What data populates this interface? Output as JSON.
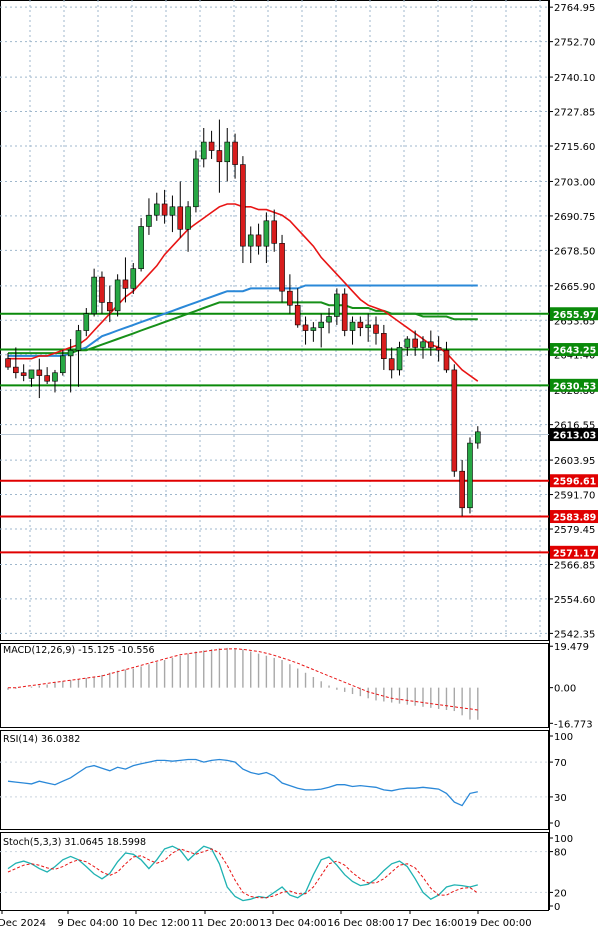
{
  "colors": {
    "bull": "#27a844",
    "bear": "#d81d1d",
    "ma_red": "#e81414",
    "ma_blue": "#2a88d8",
    "ma_green": "#179019",
    "macd_hist": "#a8a8a8",
    "macd_signal": "#e81414",
    "rsi": "#2a88d8",
    "stoch_main": "#1fb2b2",
    "stoch_signal": "#e81414",
    "grid": "#9fb7cc",
    "support_green": "#0a8a0a",
    "resistance_red": "#e00000"
  },
  "chart_data": [
    {
      "type": "candlestick",
      "panel": "price",
      "ylim": [
        2540.0,
        2767.5
      ],
      "y_ticks": [
        "2764.95",
        "2752.70",
        "2740.10",
        "2727.85",
        "2715.60",
        "2703.00",
        "2690.75",
        "2678.50",
        "2665.90",
        "2653.65",
        "2641.40",
        "2628.80",
        "2616.55",
        "2603.95",
        "2591.70",
        "2579.45",
        "2566.85",
        "2554.60",
        "2542.35"
      ],
      "x_tick_labels": [
        "Dec 2024",
        "9 Dec 04:00",
        "10 Dec 12:00",
        "11 Dec 20:00",
        "13 Dec 04:00",
        "16 Dec 08:00",
        "17 Dec 16:00",
        "19 Dec 00:00"
      ],
      "current_price": "2613.03",
      "levels": [
        {
          "label": "2655.97",
          "value": 2655.97,
          "color": "green"
        },
        {
          "label": "2643.25",
          "value": 2643.25,
          "color": "green"
        },
        {
          "label": "2630.53",
          "value": 2630.53,
          "color": "green"
        },
        {
          "label": "2596.61",
          "value": 2596.61,
          "color": "red"
        },
        {
          "label": "2583.89",
          "value": 2583.89,
          "color": "red"
        },
        {
          "label": "2571.17",
          "value": 2571.17,
          "color": "red"
        }
      ],
      "candles": [
        [
          2640,
          2642,
          2636,
          2637
        ],
        [
          2637,
          2644,
          2633,
          2635
        ],
        [
          2635,
          2638,
          2632,
          2634
        ],
        [
          2633,
          2636,
          2630,
          2636
        ],
        [
          2636,
          2640,
          2626,
          2634
        ],
        [
          2634,
          2637,
          2631,
          2632
        ],
        [
          2632,
          2636,
          2628,
          2635
        ],
        [
          2635,
          2643,
          2634,
          2641
        ],
        [
          2641,
          2647,
          2628,
          2643
        ],
        [
          2643,
          2652,
          2630,
          2650
        ],
        [
          2650,
          2658,
          2648,
          2656
        ],
        [
          2656,
          2672,
          2655,
          2669
        ],
        [
          2669,
          2671,
          2656,
          2660
        ],
        [
          2660,
          2666,
          2653,
          2657
        ],
        [
          2657,
          2670,
          2655,
          2668
        ],
        [
          2668,
          2676,
          2660,
          2665
        ],
        [
          2665,
          2674,
          2663,
          2672
        ],
        [
          2672,
          2690,
          2671,
          2687
        ],
        [
          2687,
          2697,
          2684,
          2691
        ],
        [
          2691,
          2699,
          2689,
          2695
        ],
        [
          2695,
          2700,
          2688,
          2691
        ],
        [
          2691,
          2698,
          2685,
          2694
        ],
        [
          2694,
          2703,
          2683,
          2686
        ],
        [
          2686,
          2696,
          2678,
          2694
        ],
        [
          2694,
          2714,
          2692,
          2711
        ],
        [
          2711,
          2722,
          2708,
          2717
        ],
        [
          2717,
          2721,
          2711,
          2714
        ],
        [
          2714,
          2725,
          2699,
          2710
        ],
        [
          2710,
          2722,
          2703,
          2717
        ],
        [
          2717,
          2720,
          2704,
          2709
        ],
        [
          2709,
          2712,
          2674,
          2680
        ],
        [
          2680,
          2687,
          2674,
          2684
        ],
        [
          2684,
          2688,
          2677,
          2680
        ],
        [
          2680,
          2692,
          2674,
          2689
        ],
        [
          2689,
          2693,
          2678,
          2681
        ],
        [
          2681,
          2684,
          2660,
          2664
        ],
        [
          2664,
          2670,
          2656,
          2659
        ],
        [
          2659,
          2665,
          2651,
          2652
        ],
        [
          2652,
          2655,
          2645,
          2650
        ],
        [
          2650,
          2653,
          2646,
          2651
        ],
        [
          2651,
          2656,
          2644,
          2653
        ],
        [
          2653,
          2658,
          2649,
          2655
        ],
        [
          2655,
          2665,
          2652,
          2663
        ],
        [
          2663,
          2665,
          2648,
          2650
        ],
        [
          2650,
          2655,
          2645,
          2653
        ],
        [
          2653,
          2655,
          2648,
          2651
        ],
        [
          2651,
          2656,
          2646,
          2652
        ],
        [
          2652,
          2655,
          2645,
          2649
        ],
        [
          2649,
          2652,
          2636,
          2640
        ],
        [
          2640,
          2644,
          2633,
          2636
        ],
        [
          2636,
          2646,
          2634,
          2644
        ],
        [
          2644,
          2648,
          2641,
          2647
        ],
        [
          2647,
          2650,
          2641,
          2644
        ],
        [
          2644,
          2648,
          2640,
          2646
        ],
        [
          2646,
          2650,
          2641,
          2644
        ],
        [
          2644,
          2648,
          2639,
          2643
        ],
        [
          2643,
          2646,
          2635,
          2636
        ],
        [
          2636,
          2638,
          2598,
          2600
        ],
        [
          2600,
          2604,
          2584,
          2587
        ],
        [
          2587,
          2612,
          2585,
          2610
        ],
        [
          2610,
          2616,
          2608,
          2614
        ]
      ],
      "ma_red": [
        2640,
        2640,
        2640,
        2640,
        2641,
        2641,
        2642,
        2643,
        2644,
        2645,
        2647,
        2650,
        2653,
        2656,
        2659,
        2662,
        2664,
        2667,
        2670,
        2673,
        2677,
        2680,
        2683,
        2686,
        2688,
        2690,
        2692,
        2694,
        2695,
        2695,
        2694,
        2694,
        2693,
        2693,
        2692,
        2691,
        2689,
        2686,
        2683,
        2680,
        2676,
        2673,
        2670,
        2667,
        2664,
        2661,
        2659,
        2658,
        2657,
        2655,
        2653,
        2651,
        2649,
        2647,
        2645,
        2644,
        2642,
        2639,
        2636,
        2634,
        2632
      ],
      "ma_blue": [
        2641,
        2641,
        2641,
        2641,
        2641,
        2641,
        2641,
        2641,
        2642,
        2643,
        2644,
        2646,
        2648,
        2649,
        2650,
        2651,
        2652,
        2653,
        2654,
        2655,
        2656,
        2657,
        2658,
        2659,
        2660,
        2661,
        2662,
        2663,
        2664,
        2664,
        2664,
        2665,
        2665,
        2665,
        2665,
        2665,
        2665,
        2665,
        2666,
        2666,
        2666,
        2666,
        2666,
        2666,
        2666,
        2666,
        2666,
        2666,
        2666,
        2666,
        2666,
        2666,
        2666,
        2666,
        2666,
        2666,
        2666,
        2666,
        2666,
        2666,
        2666
      ],
      "ma_green": [
        2642,
        2642,
        2642,
        2642,
        2642,
        2642,
        2642,
        2642,
        2642,
        2643,
        2643,
        2644,
        2645,
        2646,
        2647,
        2648,
        2649,
        2650,
        2651,
        2652,
        2653,
        2654,
        2655,
        2656,
        2657,
        2658,
        2659,
        2660,
        2660,
        2660,
        2660,
        2660,
        2660,
        2660,
        2660,
        2660,
        2660,
        2660,
        2660,
        2660,
        2660,
        2659,
        2659,
        2659,
        2658,
        2658,
        2658,
        2657,
        2657,
        2656,
        2656,
        2656,
        2656,
        2655,
        2655,
        2655,
        2655,
        2654,
        2654,
        2654,
        2654
      ]
    },
    {
      "type": "bar+line",
      "panel": "macd",
      "title": "MACD(12,26,9) -15.125 -10.556",
      "ylim": [
        -18.5,
        21.0
      ],
      "y_ticks": [
        "19.479",
        "0.00",
        "-16.773"
      ],
      "histogram": [
        -1,
        -0.5,
        0,
        0.5,
        1,
        1.5,
        2.5,
        3,
        3.5,
        4,
        4.5,
        5,
        6,
        7,
        8,
        8.5,
        9,
        10,
        11,
        12,
        13,
        14,
        15,
        16,
        17,
        17.5,
        18,
        18.5,
        18.7,
        18.5,
        18,
        17,
        16,
        15,
        14,
        13,
        11,
        9,
        7,
        5,
        3,
        1,
        -1,
        -2,
        -3,
        -4,
        -5,
        -6,
        -6.5,
        -7,
        -7.5,
        -8,
        -8.5,
        -9,
        -9.5,
        -10,
        -10.5,
        -11,
        -13,
        -15,
        -15.1
      ],
      "signal": [
        0,
        0,
        0.5,
        1,
        1.5,
        2,
        2.5,
        3,
        3.5,
        4,
        4.5,
        5,
        5.5,
        6.5,
        7.5,
        8.5,
        9.5,
        10.5,
        11.5,
        12.5,
        13.5,
        14.5,
        15.5,
        16,
        16.5,
        17,
        17.5,
        18,
        18.2,
        18.3,
        18,
        17.5,
        17,
        16.2,
        15.2,
        14,
        12.8,
        11.5,
        10,
        8.5,
        7,
        5.5,
        4,
        2.5,
        1,
        -0.5,
        -2,
        -3,
        -4,
        -5,
        -5.5,
        -6,
        -6.5,
        -7,
        -7.5,
        -8,
        -8.5,
        -9,
        -9.5,
        -10,
        -10.5
      ]
    },
    {
      "type": "line",
      "panel": "rsi",
      "title": "RSI(14) 36.0382",
      "ylim": [
        0,
        100
      ],
      "y_ticks": [
        "100",
        "70",
        "30",
        "0"
      ],
      "values": [
        48,
        47,
        46,
        45,
        48,
        46,
        44,
        48,
        52,
        58,
        64,
        66,
        63,
        60,
        64,
        62,
        66,
        68,
        70,
        72,
        72,
        71,
        72,
        73,
        73,
        70,
        72,
        73,
        72,
        70,
        62,
        58,
        56,
        58,
        54,
        46,
        43,
        40,
        38,
        38,
        39,
        41,
        44,
        44,
        42,
        43,
        42,
        41,
        38,
        37,
        39,
        40,
        40,
        41,
        40,
        39,
        34,
        24,
        20,
        34,
        36
      ]
    },
    {
      "type": "line",
      "panel": "stoch",
      "title": "Stoch(5,3,3) 31.0645 18.5998",
      "ylim": [
        0,
        100
      ],
      "y_ticks": [
        "100",
        "80",
        "20",
        "0"
      ],
      "main": [
        55,
        63,
        66,
        62,
        55,
        50,
        58,
        68,
        73,
        68,
        58,
        47,
        40,
        48,
        65,
        78,
        76,
        68,
        55,
        68,
        84,
        88,
        82,
        67,
        78,
        88,
        84,
        62,
        28,
        14,
        8,
        10,
        14,
        12,
        20,
        28,
        16,
        12,
        20,
        46,
        68,
        72,
        60,
        46,
        36,
        30,
        32,
        40,
        52,
        62,
        66,
        58,
        40,
        20,
        10,
        16,
        28,
        31,
        30,
        28,
        31
      ],
      "signal": [
        50,
        55,
        60,
        62,
        60,
        56,
        54,
        58,
        64,
        68,
        65,
        58,
        50,
        45,
        50,
        62,
        72,
        74,
        68,
        63,
        67,
        78,
        84,
        80,
        76,
        80,
        84,
        78,
        60,
        38,
        20,
        14,
        12,
        12,
        15,
        20,
        22,
        18,
        18,
        28,
        45,
        62,
        66,
        60,
        49,
        40,
        34,
        34,
        40,
        50,
        60,
        62,
        56,
        42,
        26,
        16,
        16,
        22,
        26,
        27,
        19
      ]
    }
  ]
}
